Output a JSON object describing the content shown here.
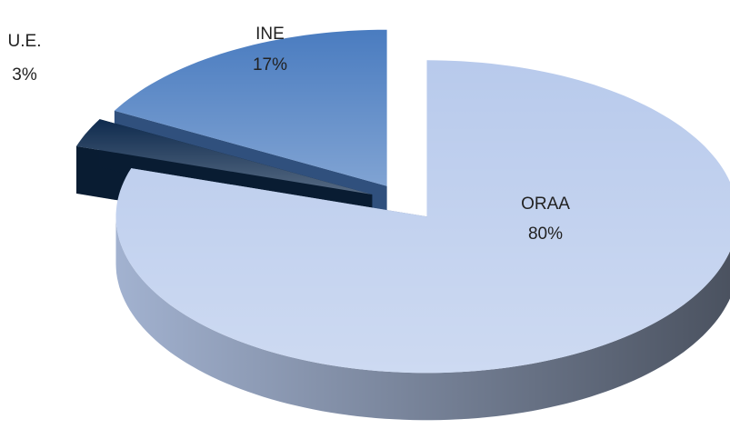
{
  "chart_data": {
    "type": "pie3d",
    "categories": [
      "ORAA",
      "U.E.",
      "INE"
    ],
    "values": [
      80,
      3,
      17
    ],
    "value_labels": [
      "80%",
      "3%",
      "17%"
    ],
    "colors": [
      "#b8caec",
      "#0f2b4e",
      "#4a7cc0"
    ]
  }
}
